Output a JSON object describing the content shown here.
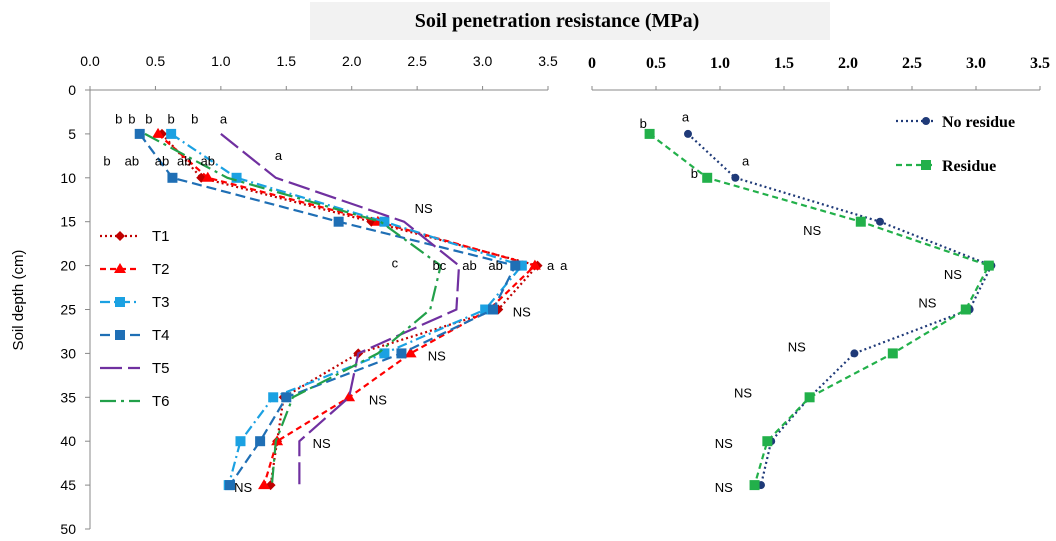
{
  "chart_data": [
    {
      "type": "line",
      "title": "Soil penetration resistance (MPa)",
      "ylabel": "Soil depth (cm)",
      "xlim": [
        0,
        3.5
      ],
      "ylim": [
        0,
        50
      ],
      "x_ticks": [
        "0.0",
        "0.5",
        "1.0",
        "1.5",
        "2.0",
        "2.5",
        "3.0",
        "3.5"
      ],
      "y_ticks": [
        "0",
        "5",
        "10",
        "15",
        "20",
        "25",
        "30",
        "35",
        "40",
        "45",
        "50"
      ],
      "depths": [
        5,
        10,
        15,
        20,
        25,
        30,
        35,
        40,
        45
      ],
      "legend": "left",
      "series": [
        {
          "name": "T1",
          "color": "#C00000",
          "dash": "2,3",
          "marker": "diamond",
          "values": [
            0.55,
            0.85,
            2.15,
            3.42,
            3.12,
            2.05,
            1.48,
            1.43,
            1.38
          ]
        },
        {
          "name": "T2",
          "color": "#FF0000",
          "dash": "6,4",
          "marker": "triangle",
          "values": [
            0.52,
            0.9,
            2.2,
            3.4,
            3.05,
            2.45,
            1.98,
            1.43,
            1.33
          ]
        },
        {
          "name": "T3",
          "color": "#1BA1E2",
          "dash": "10,4,2,4",
          "marker": "square",
          "values": [
            0.62,
            1.12,
            2.25,
            3.3,
            3.02,
            2.25,
            1.4,
            1.15,
            1.06
          ]
        },
        {
          "name": "T4",
          "color": "#1F6FB5",
          "dash": "10,5",
          "marker": "square",
          "values": [
            0.38,
            0.63,
            1.9,
            3.25,
            3.08,
            2.38,
            1.5,
            1.3,
            1.07
          ]
        },
        {
          "name": "T5",
          "color": "#7030A0",
          "dash": "22,6",
          "marker": "none",
          "values": [
            1.0,
            1.42,
            2.4,
            2.82,
            2.8,
            2.05,
            1.98,
            1.6,
            1.6
          ]
        },
        {
          "name": "T6",
          "color": "#22A04A",
          "dash": "16,5,3,5",
          "marker": "none",
          "values": [
            0.42,
            1.05,
            2.22,
            2.68,
            2.6,
            2.2,
            1.55,
            1.42,
            1.39
          ]
        }
      ],
      "annotations": [
        {
          "text": "b",
          "x": 0.22,
          "y": 3.8
        },
        {
          "text": "b",
          "x": 0.32,
          "y": 3.8
        },
        {
          "text": "b",
          "x": 0.45,
          "y": 3.8
        },
        {
          "text": "b",
          "x": 0.62,
          "y": 3.8
        },
        {
          "text": "b",
          "x": 0.8,
          "y": 3.8
        },
        {
          "text": "a",
          "x": 1.02,
          "y": 3.8
        },
        {
          "text": "b",
          "x": 0.13,
          "y": 8.6
        },
        {
          "text": "ab",
          "x": 0.32,
          "y": 8.6
        },
        {
          "text": "ab",
          "x": 0.55,
          "y": 8.6
        },
        {
          "text": "ab",
          "x": 0.72,
          "y": 8.6
        },
        {
          "text": "ab",
          "x": 0.9,
          "y": 8.6
        },
        {
          "text": "a",
          "x": 1.44,
          "y": 8.0
        },
        {
          "text": "NS",
          "x": 2.55,
          "y": 14.0
        },
        {
          "text": "c",
          "x": 2.33,
          "y": 20.2
        },
        {
          "text": "bc",
          "x": 2.67,
          "y": 20.5
        },
        {
          "text": "ab",
          "x": 2.9,
          "y": 20.5
        },
        {
          "text": "ab",
          "x": 3.1,
          "y": 20.5
        },
        {
          "text": "a",
          "x": 3.52,
          "y": 20.5
        },
        {
          "text": "a",
          "x": 3.62,
          "y": 20.5
        },
        {
          "text": "NS",
          "x": 3.3,
          "y": 25.8
        },
        {
          "text": "NS",
          "x": 2.65,
          "y": 30.8
        },
        {
          "text": "NS",
          "x": 2.2,
          "y": 35.8
        },
        {
          "text": "NS",
          "x": 1.77,
          "y": 40.8
        },
        {
          "text": "NS",
          "x": 1.17,
          "y": 45.8
        }
      ]
    },
    {
      "type": "line",
      "xlim": [
        0,
        3.5
      ],
      "ylim": [
        0,
        50
      ],
      "x_ticks": [
        "0",
        "0.5",
        "1.0",
        "1.5",
        "2.0",
        "2.5",
        "3.0",
        "3.5"
      ],
      "depths": [
        5,
        10,
        15,
        20,
        25,
        30,
        35,
        40,
        45
      ],
      "legend": "top-right",
      "series": [
        {
          "name": "No residue",
          "color": "#1F3A78",
          "dash": "2,3",
          "marker": "circle",
          "values": [
            0.75,
            1.12,
            2.25,
            3.12,
            2.95,
            2.05,
            1.7,
            1.4,
            1.32
          ]
        },
        {
          "name": "Residue",
          "color": "#22B04A",
          "dash": "6,4",
          "marker": "square",
          "values": [
            0.45,
            0.9,
            2.1,
            3.1,
            2.92,
            2.35,
            1.7,
            1.37,
            1.27
          ]
        }
      ],
      "annotations": [
        {
          "text": "b",
          "x": 0.4,
          "y": 4.3
        },
        {
          "text": "a",
          "x": 0.73,
          "y": 3.6
        },
        {
          "text": "a",
          "x": 1.2,
          "y": 8.6
        },
        {
          "text": "b",
          "x": 0.8,
          "y": 10.0
        },
        {
          "text": "NS",
          "x": 1.72,
          "y": 16.5
        },
        {
          "text": "NS",
          "x": 2.82,
          "y": 21.5
        },
        {
          "text": "NS",
          "x": 2.62,
          "y": 24.8
        },
        {
          "text": "NS",
          "x": 1.6,
          "y": 29.8
        },
        {
          "text": "NS",
          "x": 1.18,
          "y": 35.0
        },
        {
          "text": "NS",
          "x": 1.03,
          "y": 40.8
        },
        {
          "text": "NS",
          "x": 1.03,
          "y": 45.8
        }
      ]
    }
  ]
}
